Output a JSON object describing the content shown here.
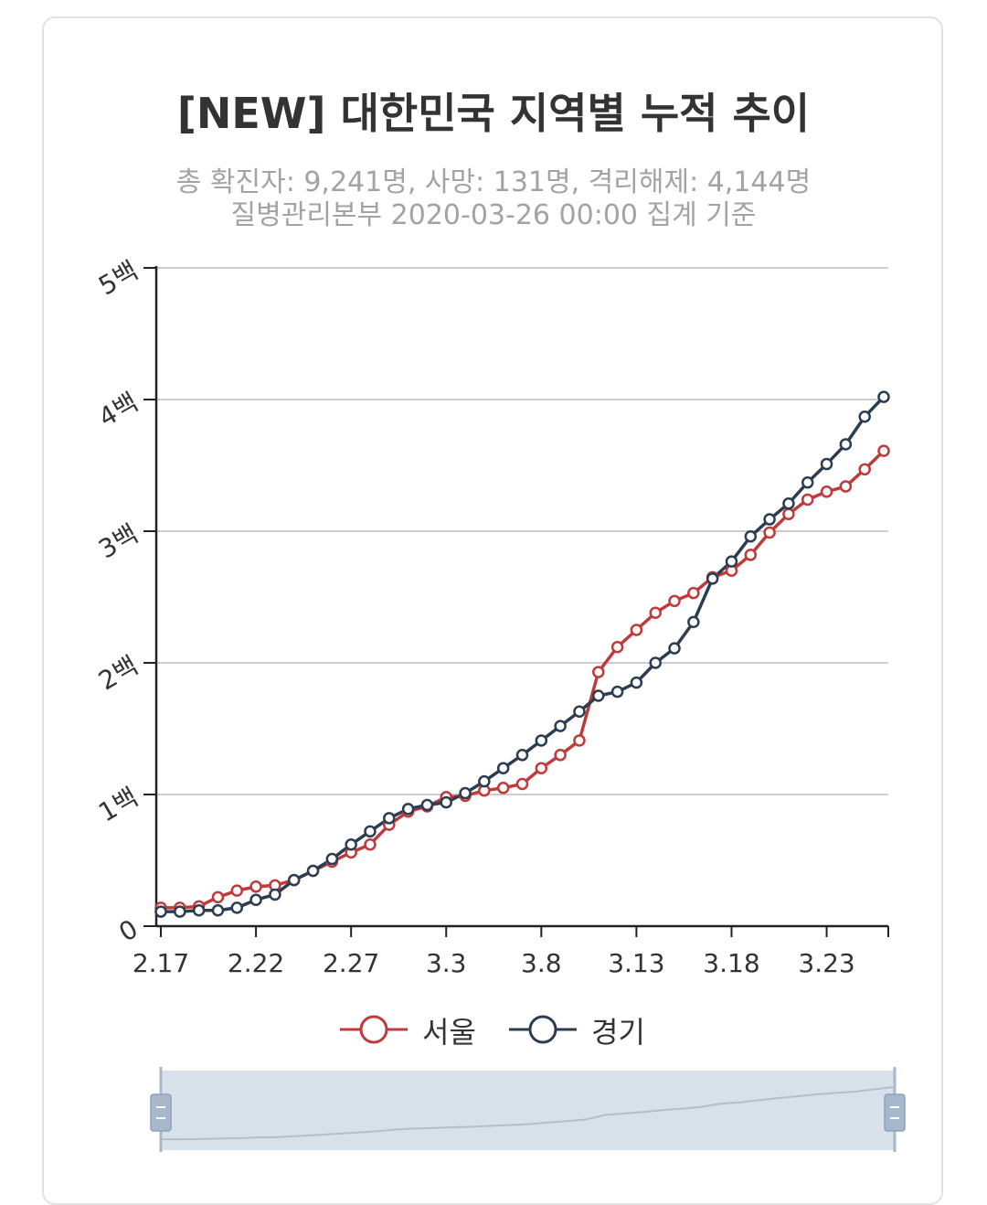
{
  "title": "[NEW] 대한민국 지역별 누적 추이",
  "subtitle_line1": "총 확진자: 9,241명, 사망: 131명, 격리해제: 4,144명",
  "subtitle_line2": "질병관리본부 2020-03-26 00:00 집계 기준",
  "colors": {
    "seoul": "#c0393b",
    "gyeonggi": "#2b3d50",
    "grid": "#cccccc",
    "axis": "#222222",
    "navigator": "#d8e0ea",
    "handle": "#a8b8cc"
  },
  "chart_data": {
    "type": "line",
    "x": [
      "2.17",
      "2.18",
      "2.19",
      "2.20",
      "2.21",
      "2.22",
      "2.23",
      "2.24",
      "2.25",
      "2.26",
      "2.27",
      "2.28",
      "2.29",
      "3.1",
      "3.2",
      "3.3",
      "3.4",
      "3.5",
      "3.6",
      "3.7",
      "3.8",
      "3.9",
      "3.10",
      "3.11",
      "3.12",
      "3.13",
      "3.14",
      "3.15",
      "3.16",
      "3.17",
      "3.18",
      "3.19",
      "3.20",
      "3.21",
      "3.22",
      "3.23",
      "3.24",
      "3.25",
      "3.26"
    ],
    "x_tick_labels": [
      "2.17",
      "2.22",
      "2.27",
      "3.3",
      "3.8",
      "3.13",
      "3.18",
      "3.23"
    ],
    "y_ticks": [
      0,
      100,
      200,
      300,
      400,
      500
    ],
    "y_tick_labels": [
      "0",
      "1백",
      "2백",
      "3백",
      "4백",
      "5백"
    ],
    "ylim": [
      0,
      500
    ],
    "grid": true,
    "legend_position": "bottom",
    "series": [
      {
        "name": "서울",
        "color": "#c0393b",
        "values": [
          14,
          14,
          15,
          22,
          27,
          30,
          31,
          35,
          42,
          49,
          56,
          62,
          77,
          87,
          91,
          98,
          99,
          103,
          105,
          108,
          120,
          130,
          141,
          193,
          212,
          225,
          238,
          247,
          253,
          265,
          270,
          282,
          299,
          313,
          324,
          330,
          334,
          347,
          361
        ]
      },
      {
        "name": "경기",
        "color": "#2b3d50",
        "values": [
          11,
          11,
          12,
          12,
          14,
          20,
          24,
          35,
          42,
          51,
          62,
          72,
          82,
          89,
          92,
          94,
          101,
          110,
          120,
          130,
          141,
          152,
          163,
          175,
          178,
          185,
          200,
          211,
          231,
          264,
          277,
          296,
          309,
          321,
          337,
          351,
          366,
          387,
          402
        ]
      }
    ]
  }
}
